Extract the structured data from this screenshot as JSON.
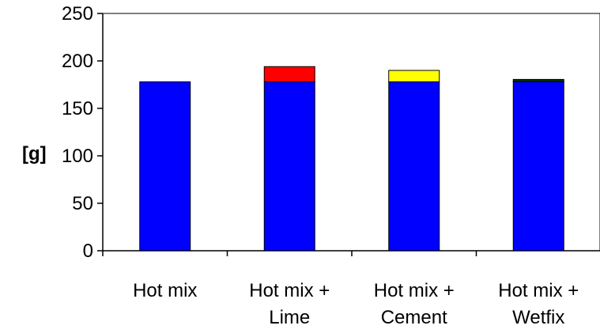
{
  "chart_data": {
    "type": "bar",
    "stacked": true,
    "title": "",
    "xlabel": "",
    "ylabel": "[g]",
    "ylim": [
      0,
      250
    ],
    "yticks": [
      0,
      50,
      100,
      150,
      200,
      250
    ],
    "grid": false,
    "legend": "none",
    "categories": [
      [
        "Hot mix"
      ],
      [
        "Hot mix +",
        "Lime"
      ],
      [
        "Hot mix +",
        "Cement"
      ],
      [
        "Hot mix +",
        "Wetfix"
      ]
    ],
    "series": [
      {
        "values": [
          178,
          178,
          178,
          178
        ],
        "colors": [
          "#0000ff",
          "#0000ff",
          "#0000ff",
          "#0000ff"
        ]
      },
      {
        "values": [
          0,
          16,
          12,
          2.5
        ],
        "colors": [
          "#0000ff",
          "#ff0000",
          "#ffff00",
          "#003300"
        ]
      }
    ]
  }
}
